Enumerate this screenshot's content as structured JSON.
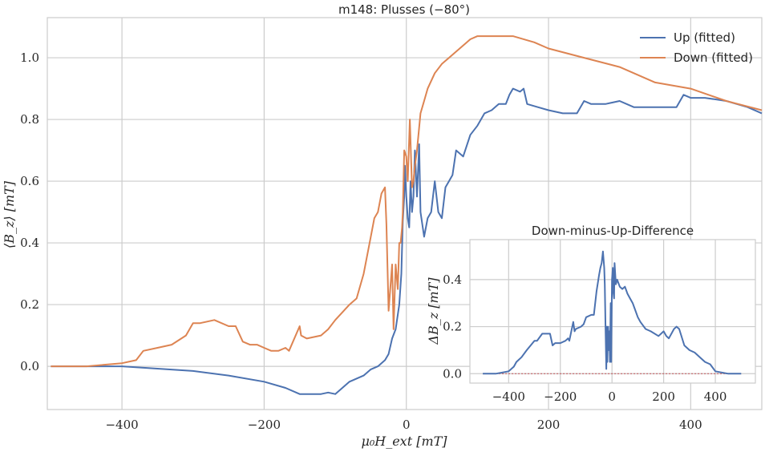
{
  "chart_data": [
    {
      "type": "line",
      "title": "m148: Plusses (−80°)",
      "xlabel": "μ₀H_ext [mT]",
      "ylabel": "⟨B_z⟩ [mT]",
      "xlim": [
        -505,
        500
      ],
      "ylim": [
        -0.14,
        1.13
      ],
      "xticks": [
        -400,
        -200,
        0,
        200,
        400
      ],
      "xtick_labels": [
        "−400",
        "−200",
        "0",
        "200",
        "400"
      ],
      "yticks": [
        0.0,
        0.2,
        0.4,
        0.6,
        0.8,
        1.0
      ],
      "ytick_labels": [
        "0.0",
        "0.2",
        "0.4",
        "0.6",
        "0.8",
        "1.0"
      ],
      "grid": true,
      "legend_position": "top-right",
      "series": [
        {
          "name": "Up (fitted)",
          "color": "#4c72b0",
          "x": [
            -500,
            -400,
            -300,
            -250,
            -200,
            -170,
            -150,
            -130,
            -120,
            -110,
            -100,
            -80,
            -60,
            -50,
            -40,
            -30,
            -25,
            -20,
            -15,
            -10,
            -7,
            -5,
            -3,
            -2,
            0,
            2,
            4,
            6,
            8,
            10,
            12,
            15,
            18,
            20,
            25,
            30,
            35,
            40,
            45,
            50,
            55,
            60,
            65,
            70,
            80,
            90,
            100,
            110,
            120,
            130,
            140,
            145,
            150,
            160,
            165,
            170,
            185,
            200,
            220,
            240,
            250,
            260,
            280,
            300,
            320,
            340,
            360,
            380,
            390,
            400,
            420,
            450,
            480,
            500
          ],
          "y": [
            0.0,
            0.0,
            -0.015,
            -0.03,
            -0.05,
            -0.07,
            -0.09,
            -0.09,
            -0.09,
            -0.085,
            -0.09,
            -0.05,
            -0.03,
            -0.01,
            0.0,
            0.02,
            0.04,
            0.09,
            0.12,
            0.2,
            0.3,
            0.47,
            0.55,
            0.65,
            0.55,
            0.48,
            0.45,
            0.6,
            0.5,
            0.55,
            0.7,
            0.55,
            0.72,
            0.5,
            0.42,
            0.48,
            0.5,
            0.6,
            0.5,
            0.48,
            0.58,
            0.6,
            0.62,
            0.7,
            0.68,
            0.75,
            0.78,
            0.82,
            0.83,
            0.85,
            0.85,
            0.88,
            0.9,
            0.89,
            0.9,
            0.85,
            0.84,
            0.83,
            0.82,
            0.82,
            0.86,
            0.85,
            0.85,
            0.86,
            0.84,
            0.84,
            0.84,
            0.84,
            0.88,
            0.87,
            0.87,
            0.86,
            0.84,
            0.82
          ]
        },
        {
          "name": "Down (fitted)",
          "color": "#dd8452",
          "x": [
            -500,
            -450,
            -400,
            -380,
            -370,
            -350,
            -330,
            -310,
            -300,
            -290,
            -270,
            -250,
            -240,
            -230,
            -220,
            -210,
            -200,
            -190,
            -180,
            -170,
            -165,
            -150,
            -148,
            -140,
            -120,
            -110,
            -100,
            -80,
            -70,
            -60,
            -50,
            -45,
            -40,
            -35,
            -30,
            -28,
            -25,
            -20,
            -18,
            -15,
            -12,
            -10,
            -8,
            -6,
            -5,
            -3,
            0,
            2,
            5,
            8,
            10,
            12,
            15,
            20,
            25,
            30,
            40,
            50,
            60,
            70,
            80,
            90,
            100,
            110,
            120,
            130,
            150,
            180,
            200,
            250,
            300,
            350,
            400,
            450,
            500
          ],
          "y": [
            0.0,
            0.0,
            0.01,
            0.02,
            0.05,
            0.06,
            0.07,
            0.1,
            0.14,
            0.14,
            0.15,
            0.13,
            0.13,
            0.08,
            0.07,
            0.07,
            0.06,
            0.05,
            0.05,
            0.06,
            0.05,
            0.13,
            0.1,
            0.09,
            0.1,
            0.12,
            0.15,
            0.2,
            0.22,
            0.3,
            0.42,
            0.48,
            0.5,
            0.56,
            0.58,
            0.46,
            0.18,
            0.33,
            0.12,
            0.33,
            0.25,
            0.4,
            0.4,
            0.45,
            0.5,
            0.7,
            0.68,
            0.6,
            0.8,
            0.58,
            0.6,
            0.65,
            0.7,
            0.82,
            0.86,
            0.9,
            0.95,
            0.98,
            1.0,
            1.02,
            1.04,
            1.06,
            1.07,
            1.07,
            1.07,
            1.07,
            1.07,
            1.05,
            1.03,
            1.0,
            0.97,
            0.92,
            0.9,
            0.86,
            0.83
          ]
        }
      ]
    },
    {
      "type": "line",
      "title": "Down-minus-Up-Difference",
      "xlabel": "",
      "ylabel": "ΔB_z [mT]",
      "xlim": [
        -550,
        555
      ],
      "ylim": [
        -0.04,
        0.57
      ],
      "xticks": [
        -400,
        -200,
        0,
        200,
        400
      ],
      "xtick_labels": [
        "−400",
        "−200",
        "0",
        "200",
        "400"
      ],
      "yticks": [
        0.0,
        0.2,
        0.4
      ],
      "ytick_labels": [
        "0.0",
        "0.2",
        "0.4"
      ],
      "grid": true,
      "zero_line_color": "#c44e52",
      "series": [
        {
          "color": "#4c72b0",
          "x": [
            -500,
            -450,
            -400,
            -380,
            -370,
            -350,
            -330,
            -300,
            -290,
            -270,
            -250,
            -240,
            -230,
            -220,
            -200,
            -180,
            -170,
            -165,
            -150,
            -145,
            -140,
            -120,
            -110,
            -100,
            -80,
            -70,
            -60,
            -50,
            -45,
            -40,
            -35,
            -30,
            -28,
            -25,
            -22,
            -20,
            -18,
            -15,
            -12,
            -10,
            -8,
            -5,
            -3,
            0,
            3,
            5,
            8,
            10,
            15,
            20,
            30,
            40,
            50,
            60,
            70,
            80,
            90,
            100,
            110,
            130,
            150,
            180,
            200,
            210,
            220,
            240,
            250,
            260,
            280,
            300,
            320,
            340,
            360,
            380,
            400,
            450,
            500
          ],
          "y": [
            0.0,
            0.0,
            0.01,
            0.03,
            0.05,
            0.07,
            0.1,
            0.14,
            0.14,
            0.17,
            0.17,
            0.17,
            0.12,
            0.13,
            0.13,
            0.14,
            0.15,
            0.14,
            0.22,
            0.18,
            0.19,
            0.2,
            0.21,
            0.24,
            0.25,
            0.25,
            0.35,
            0.42,
            0.45,
            0.47,
            0.52,
            0.45,
            0.38,
            0.2,
            0.02,
            0.2,
            0.05,
            0.2,
            0.1,
            0.18,
            0.05,
            0.3,
            0.05,
            0.4,
            0.45,
            0.35,
            0.32,
            0.47,
            0.38,
            0.4,
            0.37,
            0.36,
            0.37,
            0.34,
            0.32,
            0.3,
            0.27,
            0.24,
            0.22,
            0.19,
            0.18,
            0.16,
            0.18,
            0.16,
            0.15,
            0.19,
            0.2,
            0.19,
            0.12,
            0.1,
            0.09,
            0.07,
            0.05,
            0.04,
            0.01,
            0.0,
            0.0
          ]
        }
      ]
    }
  ]
}
